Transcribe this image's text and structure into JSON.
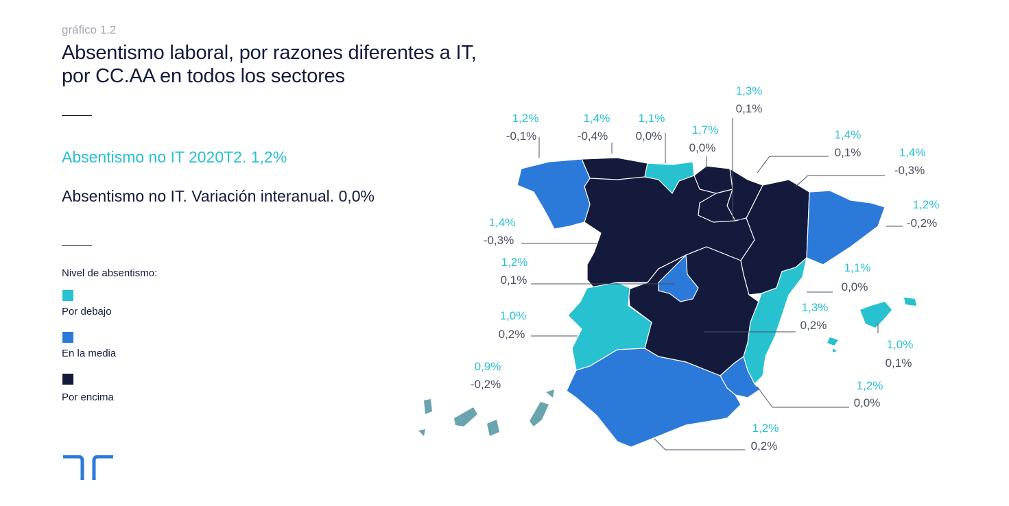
{
  "header": {
    "subtitle": "gráfico 1.2",
    "title_line1": "Absentismo laboral, por razones diferentes a IT,",
    "title_line2": "por CC.AA en todos los sectores"
  },
  "stats": {
    "level": "Absentismo no IT 2020T2. 1,2%",
    "variation": "Absentismo no IT. Variación interanual. 0,0%"
  },
  "legend": {
    "title": "Nivel de absentismo:",
    "items": [
      {
        "label": "Por debajo",
        "color": "#27c1cf"
      },
      {
        "label": "En la media",
        "color": "#2b7ad9"
      },
      {
        "label": "Por encima",
        "color": "#141a3c"
      }
    ]
  },
  "colors": {
    "below": "#27c1cf",
    "average": "#2b7ad9",
    "above": "#141a3c",
    "canarias": "#6aa4ae"
  },
  "regions": [
    {
      "name": "Galicia",
      "rate": "1,2%",
      "change": "-0,1%"
    },
    {
      "name": "Asturias",
      "rate": "1,4%",
      "change": "-0,4%"
    },
    {
      "name": "Cantabria",
      "rate": "1,1%",
      "change": "0,0%"
    },
    {
      "name": "País Vasco",
      "rate": "1,7%",
      "change": "0,0%"
    },
    {
      "name": "La Rioja",
      "rate": "1,3%",
      "change": "0,1%"
    },
    {
      "name": "Navarra",
      "rate": "1,4%",
      "change": "0,1%"
    },
    {
      "name": "Aragón",
      "rate": "1,4%",
      "change": "-0,3%"
    },
    {
      "name": "Cataluña",
      "rate": "1,2%",
      "change": "-0,2%"
    },
    {
      "name": "Castilla y León",
      "rate": "1,4%",
      "change": "-0,3%"
    },
    {
      "name": "Madrid",
      "rate": "1,2%",
      "change": "0,1%"
    },
    {
      "name": "Extremadura",
      "rate": "1,0%",
      "change": "0,2%"
    },
    {
      "name": "Castilla-La Mancha",
      "rate": "1,3%",
      "change": "0,2%"
    },
    {
      "name": "C. Valenciana",
      "rate": "1,1%",
      "change": "0,0%"
    },
    {
      "name": "Baleares",
      "rate": "1,0%",
      "change": "0,1%"
    },
    {
      "name": "Murcia",
      "rate": "1,2%",
      "change": "0,0%"
    },
    {
      "name": "Andalucía",
      "rate": "1,2%",
      "change": "0,2%"
    },
    {
      "name": "Canarias",
      "rate": "0,9%",
      "change": "-0,2%"
    }
  ]
}
